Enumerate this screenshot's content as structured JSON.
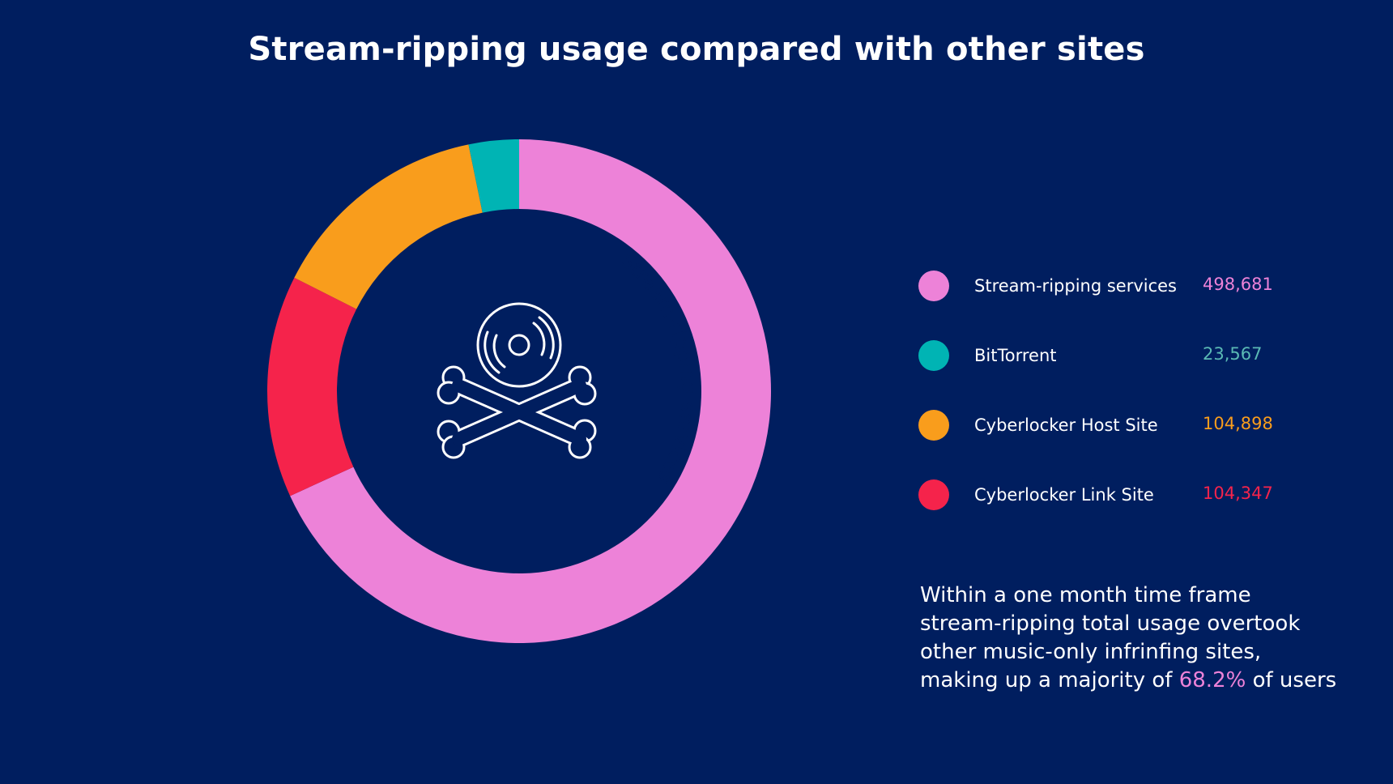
{
  "chart_data": {
    "type": "pie",
    "donut": true,
    "title": "Stream-ripping usage compared with other sites",
    "series": [
      {
        "name": "Stream-ripping services",
        "value": 498681,
        "value_label": "498,681",
        "color": "#ed82d8",
        "label_color": "#ed82d8"
      },
      {
        "name": "BitTorrent",
        "value": 23567,
        "value_label": "23,567",
        "color": "#00b4b4",
        "label_color": "#5ab9b4"
      },
      {
        "name": "Cyberlocker Host Site",
        "value": 104898,
        "value_label": "104,898",
        "color": "#f99d1c",
        "label_color": "#f99d1c"
      },
      {
        "name": "Cyberlocker Link Site",
        "value": 104347,
        "value_label": "104,347",
        "color": "#f5234b",
        "label_color": "#f5234b"
      }
    ],
    "ring_label": "Stream-ripping services",
    "center_icon": "vinyl-skull-crossbones-icon",
    "legend_position": "right"
  },
  "note": {
    "line1": "Within a one month time frame",
    "line2": "stream-ripping total usage overtook",
    "line3": "other music-only infrinfing sites,",
    "line4_before": "making up a majority of ",
    "line4_highlight": "68.2%",
    "line4_after": " of users"
  },
  "colors": {
    "background": "#001e5f",
    "text": "#ffffff",
    "highlight": "#ed82d8"
  }
}
